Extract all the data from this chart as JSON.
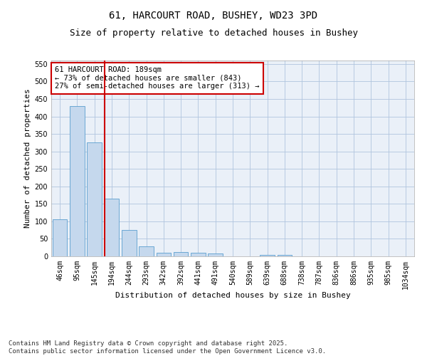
{
  "title1": "61, HARCOURT ROAD, BUSHEY, WD23 3PD",
  "title2": "Size of property relative to detached houses in Bushey",
  "xlabel": "Distribution of detached houses by size in Bushey",
  "ylabel": "Number of detached properties",
  "categories": [
    "46sqm",
    "95sqm",
    "145sqm",
    "194sqm",
    "244sqm",
    "293sqm",
    "342sqm",
    "392sqm",
    "441sqm",
    "491sqm",
    "540sqm",
    "589sqm",
    "639sqm",
    "688sqm",
    "738sqm",
    "787sqm",
    "836sqm",
    "886sqm",
    "935sqm",
    "985sqm",
    "1034sqm"
  ],
  "values": [
    105,
    430,
    325,
    165,
    75,
    28,
    10,
    12,
    10,
    8,
    0,
    0,
    4,
    4,
    0,
    0,
    0,
    0,
    0,
    0,
    0
  ],
  "bar_color": "#c5d8ed",
  "bar_edge_color": "#5a9ecf",
  "vline_color": "#cc0000",
  "vline_position": 2.575,
  "annotation_text": "61 HARCOURT ROAD: 189sqm\n← 73% of detached houses are smaller (843)\n27% of semi-detached houses are larger (313) →",
  "annotation_box_color": "#cc0000",
  "ylim": [
    0,
    560
  ],
  "yticks": [
    0,
    50,
    100,
    150,
    200,
    250,
    300,
    350,
    400,
    450,
    500,
    550
  ],
  "grid_color": "#b0c4de",
  "bg_color": "#eaf0f8",
  "footnote": "Contains HM Land Registry data © Crown copyright and database right 2025.\nContains public sector information licensed under the Open Government Licence v3.0.",
  "title_fontsize": 10,
  "subtitle_fontsize": 9,
  "axis_label_fontsize": 8,
  "tick_fontsize": 7,
  "annot_fontsize": 7.5,
  "footnote_fontsize": 6.5
}
